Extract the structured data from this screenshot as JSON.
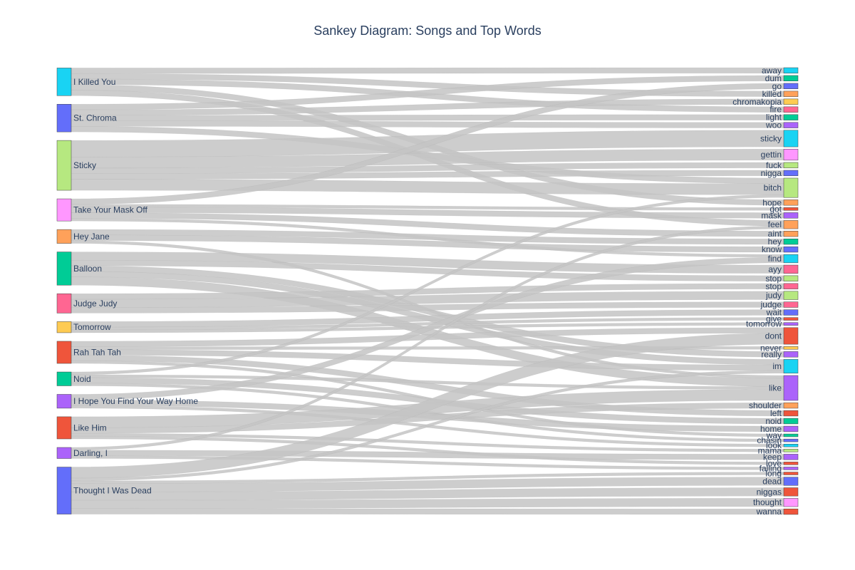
{
  "title": "Sankey Diagram: Songs and Top Words",
  "colors": {
    "link": "#c4c4c4",
    "text": "#2a3f5f",
    "palette": [
      "#636efa",
      "#ef553b",
      "#00cc96",
      "#ab63fa",
      "#ffa15a",
      "#19d3f3",
      "#ff6692",
      "#b6e880",
      "#ff97ff",
      "#fecb52"
    ]
  },
  "songs": [
    {
      "id": "I Killed You",
      "label": "I Killed You",
      "color": "#19d3f3"
    },
    {
      "id": "St. Chroma",
      "label": "St. Chroma",
      "color": "#636efa"
    },
    {
      "id": "Sticky",
      "label": "Sticky",
      "color": "#b6e880"
    },
    {
      "id": "Take Your Mask Off",
      "label": "Take Your Mask Off",
      "color": "#ff97ff"
    },
    {
      "id": "Hey Jane",
      "label": "Hey Jane",
      "color": "#ffa15a"
    },
    {
      "id": "Balloon",
      "label": "Balloon",
      "color": "#00cc96"
    },
    {
      "id": "Judge Judy",
      "label": "Judge Judy",
      "color": "#ff6692"
    },
    {
      "id": "Tomorrow",
      "label": "Tomorrow",
      "color": "#fecb52"
    },
    {
      "id": "Rah Tah Tah",
      "label": "Rah Tah Tah",
      "color": "#ef553b"
    },
    {
      "id": "Noid",
      "label": "Noid",
      "color": "#00cc96"
    },
    {
      "id": "I Hope You Find Your Way Home",
      "label": "I Hope You Find Your Way Home",
      "color": "#ab63fa"
    },
    {
      "id": "Like Him",
      "label": "Like Him",
      "color": "#ef553b"
    },
    {
      "id": "Darling, I",
      "label": "Darling, I",
      "color": "#ab63fa"
    },
    {
      "id": "Thought I Was Dead",
      "label": "Thought I Was Dead",
      "color": "#636efa"
    }
  ],
  "words": [
    {
      "id": "away",
      "label": "away",
      "color": "#19d3f3"
    },
    {
      "id": "dum",
      "label": "dum",
      "color": "#00cc96"
    },
    {
      "id": "go",
      "label": "go",
      "color": "#636efa"
    },
    {
      "id": "killed",
      "label": "killed",
      "color": "#ffa15a"
    },
    {
      "id": "chromakopia",
      "label": "chromakopia",
      "color": "#fecb52"
    },
    {
      "id": "fire",
      "label": "fire",
      "color": "#ff6692"
    },
    {
      "id": "light",
      "label": "light",
      "color": "#00cc96"
    },
    {
      "id": "woo",
      "label": "woo",
      "color": "#ab63fa"
    },
    {
      "id": "sticky",
      "label": "sticky",
      "color": "#19d3f3"
    },
    {
      "id": "gettin",
      "label": "gettin",
      "color": "#ff97ff"
    },
    {
      "id": "fuck",
      "label": "fuck",
      "color": "#b6e880"
    },
    {
      "id": "nigga",
      "label": "nigga",
      "color": "#636efa"
    },
    {
      "id": "bitch",
      "label": "bitch",
      "color": "#b6e880"
    },
    {
      "id": "hope",
      "label": "hope",
      "color": "#ffa15a"
    },
    {
      "id": "got",
      "label": "got",
      "color": "#ef553b"
    },
    {
      "id": "mask",
      "label": "mask",
      "color": "#ab63fa"
    },
    {
      "id": "feel",
      "label": "feel",
      "color": "#ffa15a"
    },
    {
      "id": "aint",
      "label": "aint",
      "color": "#ffa15a"
    },
    {
      "id": "hey",
      "label": "hey",
      "color": "#00cc96"
    },
    {
      "id": "know",
      "label": "know",
      "color": "#636efa"
    },
    {
      "id": "find",
      "label": "find",
      "color": "#19d3f3"
    },
    {
      "id": "ayy",
      "label": "ayy",
      "color": "#ff6692"
    },
    {
      "id": "stop1",
      "label": "stop",
      "color": "#b6e880"
    },
    {
      "id": "stop2",
      "label": "stop",
      "color": "#ff6692"
    },
    {
      "id": "judy",
      "label": "judy",
      "color": "#b6e880"
    },
    {
      "id": "judge",
      "label": "judge",
      "color": "#ff6692"
    },
    {
      "id": "wait",
      "label": "wait",
      "color": "#636efa"
    },
    {
      "id": "give",
      "label": "give",
      "color": "#ef553b"
    },
    {
      "id": "tomorrow",
      "label": "tomorrow",
      "color": "#ab63fa"
    },
    {
      "id": "dont",
      "label": "dont",
      "color": "#ef553b"
    },
    {
      "id": "never",
      "label": "never",
      "color": "#fecb52"
    },
    {
      "id": "really",
      "label": "really",
      "color": "#ab63fa"
    },
    {
      "id": "im",
      "label": "im",
      "color": "#19d3f3"
    },
    {
      "id": "like",
      "label": "like",
      "color": "#ab63fa"
    },
    {
      "id": "shoulder",
      "label": "shoulder",
      "color": "#ffa15a"
    },
    {
      "id": "left",
      "label": "left",
      "color": "#ef553b"
    },
    {
      "id": "noid",
      "label": "noid",
      "color": "#00cc96"
    },
    {
      "id": "home",
      "label": "home",
      "color": "#ab63fa"
    },
    {
      "id": "way",
      "label": "way",
      "color": "#00cc96"
    },
    {
      "id": "chasin",
      "label": "chasin",
      "color": "#636efa"
    },
    {
      "id": "look",
      "label": "look",
      "color": "#19d3f3"
    },
    {
      "id": "mama",
      "label": "mama",
      "color": "#b6e880"
    },
    {
      "id": "keep",
      "label": "keep",
      "color": "#ab63fa"
    },
    {
      "id": "love",
      "label": "love",
      "color": "#ef553b"
    },
    {
      "id": "falling",
      "label": "falling",
      "color": "#ab63fa"
    },
    {
      "id": "long",
      "label": "long",
      "color": "#ef553b"
    },
    {
      "id": "dead",
      "label": "dead",
      "color": "#636efa"
    },
    {
      "id": "niggas",
      "label": "niggas",
      "color": "#ef553b"
    },
    {
      "id": "thought",
      "label": "thought",
      "color": "#ff97ff"
    },
    {
      "id": "wanna",
      "label": "wanna",
      "color": "#ef553b"
    }
  ],
  "links": [
    {
      "source": "I Killed You",
      "target": "away",
      "value": 2
    },
    {
      "source": "I Killed You",
      "target": "killed",
      "value": 2
    },
    {
      "source": "I Killed You",
      "target": "fire",
      "value": 2
    },
    {
      "source": "I Killed You",
      "target": "hope",
      "value": 2
    },
    {
      "source": "I Killed You",
      "target": "feel",
      "value": 2
    },
    {
      "source": "St. Chroma",
      "target": "dum",
      "value": 2
    },
    {
      "source": "St. Chroma",
      "target": "chromakopia",
      "value": 2
    },
    {
      "source": "St. Chroma",
      "target": "light",
      "value": 2
    },
    {
      "source": "St. Chroma",
      "target": "woo",
      "value": 2
    },
    {
      "source": "St. Chroma",
      "target": "bitch",
      "value": 2
    },
    {
      "source": "Sticky",
      "target": "sticky",
      "value": 6
    },
    {
      "source": "Sticky",
      "target": "gettin",
      "value": 4
    },
    {
      "source": "Sticky",
      "target": "fuck",
      "value": 2
    },
    {
      "source": "Sticky",
      "target": "nigga",
      "value": 2
    },
    {
      "source": "Sticky",
      "target": "bitch",
      "value": 4
    },
    {
      "source": "Take Your Mask Off",
      "target": "go",
      "value": 2
    },
    {
      "source": "Take Your Mask Off",
      "target": "got",
      "value": 1
    },
    {
      "source": "Take Your Mask Off",
      "target": "mask",
      "value": 2
    },
    {
      "source": "Take Your Mask Off",
      "target": "aint",
      "value": 2
    },
    {
      "source": "Take Your Mask Off",
      "target": "find",
      "value": 1
    },
    {
      "source": "Hey Jane",
      "target": "hey",
      "value": 2
    },
    {
      "source": "Hey Jane",
      "target": "know",
      "value": 2
    },
    {
      "source": "Hey Jane",
      "target": "like",
      "value": 1
    },
    {
      "source": "Balloon",
      "target": "ayy",
      "value": 3
    },
    {
      "source": "Balloon",
      "target": "stop1",
      "value": 2
    },
    {
      "source": "Balloon",
      "target": "im",
      "value": 2
    },
    {
      "source": "Balloon",
      "target": "like",
      "value": 3
    },
    {
      "source": "Balloon",
      "target": "really",
      "value": 2
    },
    {
      "source": "Judge Judy",
      "target": "judy",
      "value": 3
    },
    {
      "source": "Judge Judy",
      "target": "judge",
      "value": 2
    },
    {
      "source": "Judge Judy",
      "target": "stop2",
      "value": 2
    },
    {
      "source": "Tomorrow",
      "target": "wait",
      "value": 2
    },
    {
      "source": "Tomorrow",
      "target": "give",
      "value": 1
    },
    {
      "source": "Tomorrow",
      "target": "tomorrow",
      "value": 1
    },
    {
      "source": "Rah Tah Tah",
      "target": "dont",
      "value": 2
    },
    {
      "source": "Rah Tah Tah",
      "target": "never",
      "value": 1
    },
    {
      "source": "Rah Tah Tah",
      "target": "im",
      "value": 2
    },
    {
      "source": "Rah Tah Tah",
      "target": "left",
      "value": 2
    },
    {
      "source": "Rah Tah Tah",
      "target": "way",
      "value": 1
    },
    {
      "source": "Noid",
      "target": "bitch",
      "value": 1
    },
    {
      "source": "Noid",
      "target": "noid",
      "value": 2
    },
    {
      "source": "Noid",
      "target": "chasin",
      "value": 1
    },
    {
      "source": "Noid",
      "target": "like",
      "value": 1
    },
    {
      "source": "I Hope You Find Your Way Home",
      "target": "find",
      "value": 2
    },
    {
      "source": "I Hope You Find Your Way Home",
      "target": "home",
      "value": 2
    },
    {
      "source": "I Hope You Find Your Way Home",
      "target": "look",
      "value": 1
    },
    {
      "source": "Like Him",
      "target": "like",
      "value": 4
    },
    {
      "source": "Like Him",
      "target": "shoulder",
      "value": 2
    },
    {
      "source": "Like Him",
      "target": "mama",
      "value": 1
    },
    {
      "source": "Like Him",
      "target": "love",
      "value": 1
    },
    {
      "source": "Darling, I",
      "target": "feel",
      "value": 1
    },
    {
      "source": "Darling, I",
      "target": "keep",
      "value": 2
    },
    {
      "source": "Darling, I",
      "target": "falling",
      "value": 1
    },
    {
      "source": "Thought I Was Dead",
      "target": "dont",
      "value": 4
    },
    {
      "source": "Thought I Was Dead",
      "target": "im",
      "value": 1
    },
    {
      "source": "Thought I Was Dead",
      "target": "long",
      "value": 1
    },
    {
      "source": "Thought I Was Dead",
      "target": "dead",
      "value": 3
    },
    {
      "source": "Thought I Was Dead",
      "target": "niggas",
      "value": 3
    },
    {
      "source": "Thought I Was Dead",
      "target": "thought",
      "value": 3
    },
    {
      "source": "Thought I Was Dead",
      "target": "wanna",
      "value": 2
    }
  ]
}
